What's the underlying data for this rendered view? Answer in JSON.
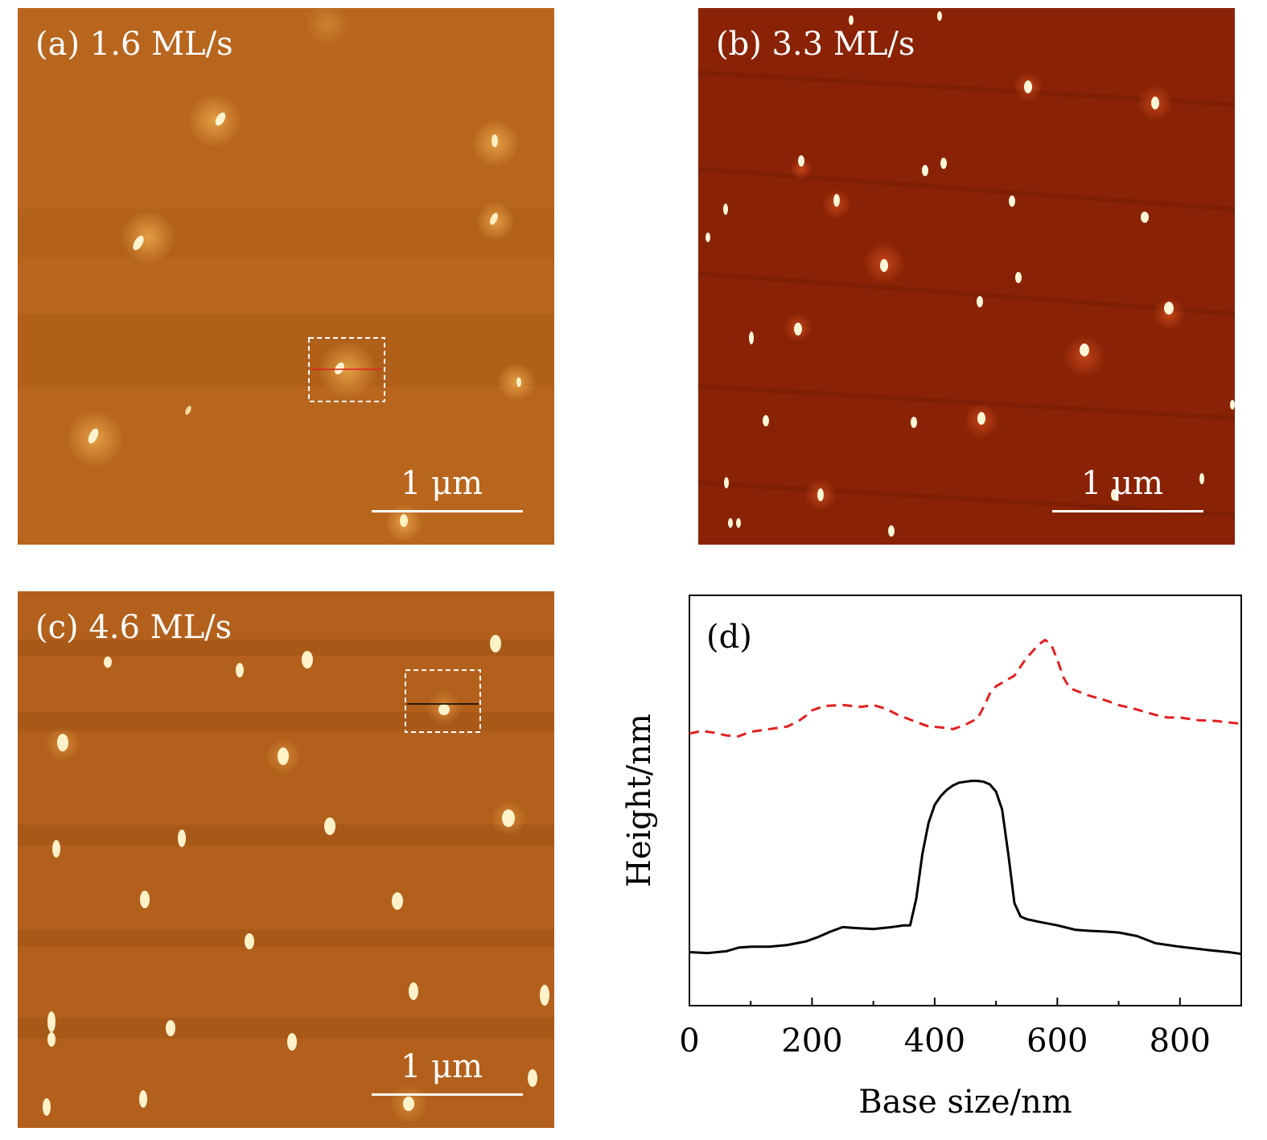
{
  "panels": [
    {
      "label": "(a) 1.6 ML/s",
      "scale_bar": "1 μm"
    },
    {
      "label": "(b) 3.3 ML/s",
      "scale_bar": "1 μm"
    },
    {
      "label": "(c) 4.6 ML/s",
      "scale_bar": "1 μm"
    }
  ],
  "colors": {
    "panel_a_bg": "#b8651d",
    "panel_b_bg": "#8a2306",
    "panel_c_bg": "#b3601c",
    "red_series": "#e02020",
    "black_series": "#000000"
  },
  "chart_data": {
    "type": "line",
    "panel_label": "(d)",
    "xlabel": "Base size/nm",
    "ylabel": "Height/nm",
    "xlim": [
      0,
      900
    ],
    "x_ticks": [
      "0",
      "200",
      "400",
      "600",
      "800"
    ],
    "y_ticks_shown": false,
    "series": [
      {
        "style": "dashed",
        "color": "#e02020",
        "x": [
          0,
          20,
          40,
          60,
          80,
          100,
          130,
          160,
          180,
          190,
          200,
          220,
          250,
          280,
          300,
          320,
          340,
          370,
          390,
          410,
          430,
          450,
          470,
          480,
          490,
          500,
          510,
          530,
          550,
          570,
          580,
          590,
          600,
          610,
          620,
          650,
          680,
          700,
          730,
          760,
          780,
          800,
          830,
          860,
          900
        ],
        "y": [
          2.55,
          2.58,
          2.56,
          2.53,
          2.52,
          2.57,
          2.6,
          2.63,
          2.7,
          2.75,
          2.81,
          2.86,
          2.87,
          2.85,
          2.87,
          2.83,
          2.76,
          2.68,
          2.63,
          2.62,
          2.6,
          2.65,
          2.72,
          2.85,
          3.0,
          3.08,
          3.12,
          3.2,
          3.4,
          3.55,
          3.6,
          3.55,
          3.38,
          3.18,
          3.06,
          2.98,
          2.92,
          2.87,
          2.82,
          2.76,
          2.73,
          2.73,
          2.7,
          2.69,
          2.66
        ]
      },
      {
        "style": "solid",
        "color": "#000000",
        "x": [
          0,
          30,
          60,
          80,
          100,
          130,
          160,
          190,
          210,
          230,
          250,
          270,
          300,
          330,
          350,
          360,
          370,
          380,
          390,
          400,
          410,
          420,
          430,
          440,
          450,
          460,
          470,
          480,
          490,
          500,
          510,
          520,
          530,
          540,
          550,
          570,
          600,
          630,
          650,
          680,
          700,
          730,
          760,
          800,
          850,
          880,
          900
        ],
        "y": [
          0.1,
          0.09,
          0.11,
          0.15,
          0.16,
          0.16,
          0.18,
          0.22,
          0.27,
          0.33,
          0.38,
          0.37,
          0.36,
          0.38,
          0.4,
          0.4,
          0.7,
          1.2,
          1.55,
          1.75,
          1.85,
          1.92,
          1.97,
          2.0,
          2.01,
          2.02,
          2.02,
          2.01,
          1.98,
          1.9,
          1.7,
          1.2,
          0.65,
          0.5,
          0.47,
          0.44,
          0.4,
          0.35,
          0.34,
          0.33,
          0.32,
          0.28,
          0.2,
          0.16,
          0.12,
          0.1,
          0.08
        ]
      }
    ]
  }
}
